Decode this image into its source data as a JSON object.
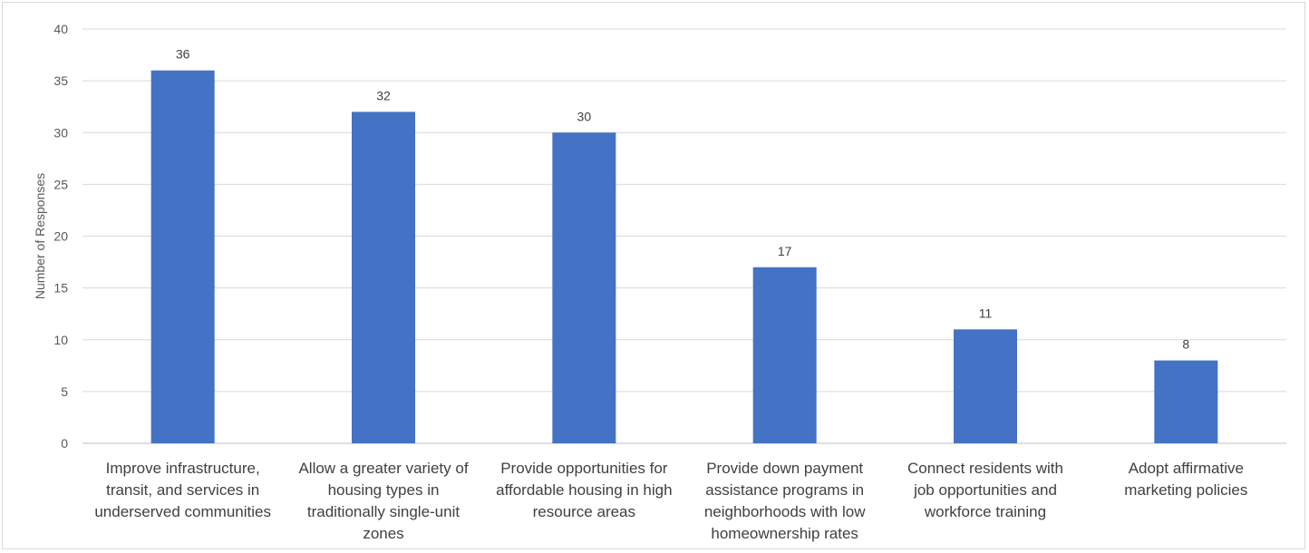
{
  "chart_data": {
    "type": "bar",
    "categories": [
      [
        "Improve infrastructure,",
        "transit, and services in",
        "underserved communities"
      ],
      [
        "Allow a greater variety of",
        "housing types in",
        "traditionally single-unit",
        "zones"
      ],
      [
        "Provide opportunities for",
        "affordable housing in high",
        "resource areas"
      ],
      [
        "Provide down payment",
        "assistance programs in",
        "neighborhoods with low",
        "homeownership rates"
      ],
      [
        "Connect residents with",
        "job opportunities and",
        "workforce training"
      ],
      [
        "Adopt affirmative",
        "marketing policies"
      ]
    ],
    "values": [
      36,
      32,
      30,
      17,
      11,
      8
    ],
    "ylabel": "Number of Responses",
    "ylim": [
      0,
      40
    ],
    "yticks": [
      0,
      5,
      10,
      15,
      20,
      25,
      30,
      35,
      40
    ],
    "grid": true,
    "colors": {
      "bar": "#4472C4",
      "grid": "#d9d9d9",
      "axis": "#bfbfbf"
    }
  }
}
